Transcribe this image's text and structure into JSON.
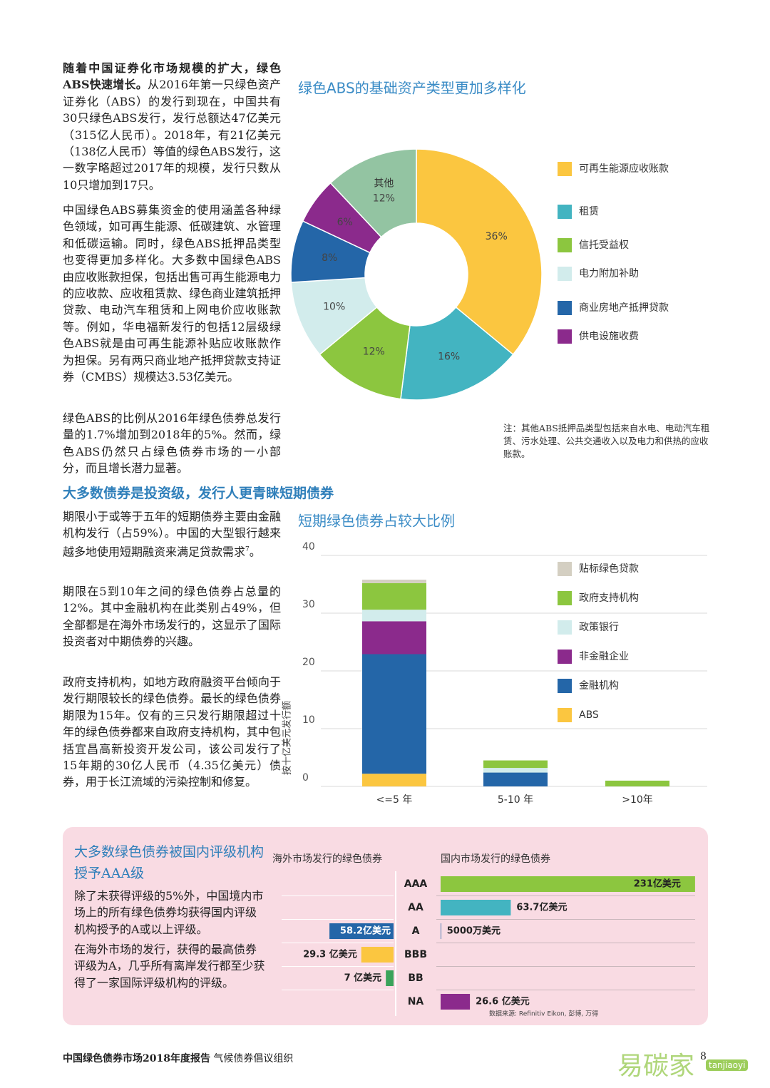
{
  "intro": {
    "lead": "随着中国证券化市场规模的扩大，绿色ABS快速增长。",
    "body": "从2016年第一只绿色资产证券化（ABS）的发行到现在，中国共有30只绿色ABS发行，发行总额达47亿美元（315亿人民币）。2018年，有21亿美元（138亿人民币）等值的绿色ABS发行，这一数字略超过2017年的规模，发行只数从10只增加到17只。",
    "p2": "中国绿色ABS募集资金的使用涵盖各种绿色领域，如可再生能源、低碳建筑、水管理和低碳运输。同时，绿色ABS抵押品类型也变得更加多样化。大多数中国绿色ABS由应收账款担保，包括出售可再生能源电力的应收款、应收租赁款、绿色商业建筑抵押贷款、电动汽车租赁和上网电价应收账款等。例如，华电福新发行的包括12层级绿色ABS就是由可再生能源补贴应收账款作为担保。另有两只商业地产抵押贷款支持证券（CMBS）规模达3.53亿美元。",
    "p3": "绿色ABS的比例从2016年绿色债券总发行量的1.7%增加到2018年的5%。然而，绿色ABS仍然只占绿色债券市场的一小部分，而且增长潜力显著。"
  },
  "section": {
    "heading": "大多数债券是投资级，发行人更青睐短期债券",
    "p1": "期限小于或等于五年的短期债券主要由金融机构发行（占59%）。中国的大型银行越来越多地使用短期融资来满足贷款需求",
    "p1_footnote": "7",
    "p1_end": "。",
    "p2": "期限在5到10年之间的绿色债券占总量的12%。其中金融机构在此类别占49%，但全部都是在海外市场发行的，这显示了国际投资者对中期债券的兴趣。",
    "p3": "政府支持机构，如地方政府融资平台倾向于发行期限较长的绿色债券。最长的绿色债券期限为15年。仅有的三只发行期限超过十年的绿色债券都来自政府支持机构，其中包括宜昌高新投资开发公司，该公司发行了15年期的30亿人民币（4.35亿美元）债券，用于长江流域的污染控制和修复。"
  },
  "rating_panel": {
    "title": "大多数绿色债券被国内评级机构授予AAA级",
    "p1": "除了未获得评级的5%外，中国境内市场上的所有绿色债券均获得国内评级机构授予的A或以上评级。",
    "p2": "在海外市场的发行，获得的最高债券评级为A，几乎所有离岸发行都至少获得了一家国际评级机构的评级。"
  },
  "chart_data": [
    {
      "type": "donut",
      "title": "绿色ABS的基础资产类型更加多样化",
      "categories": [
        "可再生能源应收账款",
        "租赁",
        "信托受益权",
        "电力附加补助",
        "商业房地产抵押贷款",
        "供电设施收费",
        "其他"
      ],
      "values": [
        36,
        16,
        12,
        10,
        8,
        6,
        12
      ],
      "value_labels": [
        "36%",
        "16%",
        "12%",
        "10%",
        "8%",
        "6%",
        "12%"
      ],
      "colors": [
        "#fbc640",
        "#43b4c1",
        "#8cc63f",
        "#d2ecec",
        "#2466a8",
        "#8b2a8c",
        "#93c4a2"
      ],
      "note": "注：其他ABS抵押品类型包括来自水电、电动汽车租赁、污水处理、公共交通收入以及电力和供热的应收账款。"
    },
    {
      "type": "stacked_bar",
      "title": "短期绿色债券占较大比例",
      "y_label": "按十亿美元发行额",
      "categories": [
        "<=5 年",
        "5-10 年",
        ">10年"
      ],
      "series": [
        {
          "name": "ABS",
          "color": "#fbc640",
          "values": [
            2.2,
            0,
            0
          ]
        },
        {
          "name": "金融机构",
          "color": "#2466a8",
          "values": [
            20.7,
            2.4,
            0
          ]
        },
        {
          "name": "非金融企业",
          "color": "#8b2a8c",
          "values": [
            5.7,
            0,
            0
          ]
        },
        {
          "name": "政策银行",
          "color": "#d2ecec",
          "values": [
            2,
            0.8,
            0
          ]
        },
        {
          "name": "政府支持机构",
          "color": "#8cc63f",
          "values": [
            4.6,
            1.3,
            1
          ]
        },
        {
          "name": "贴标绿色贷款",
          "color": "#d4cfc2",
          "values": [
            0.6,
            0,
            0
          ]
        }
      ],
      "ylim": [
        0,
        40
      ],
      "yticks": [
        0,
        10,
        20,
        30,
        40
      ],
      "grid": true
    },
    {
      "type": "butterfly",
      "categories": [
        "AAA",
        "AA",
        "A",
        "BBB",
        "BB",
        "NA"
      ],
      "series": [
        {
          "name": "海外市场发行的绿色债券",
          "values": [
            null,
            null,
            58.2,
            29.3,
            7,
            null
          ],
          "value_labels": [
            null,
            null,
            "58.2亿美元",
            "29.3 亿美元",
            "7 亿美元",
            null
          ],
          "colors": [
            null,
            null,
            "#2466a8",
            "#fbc640",
            "#3aa35a",
            null
          ]
        },
        {
          "name": "国内市场发行的绿色债券",
          "values": [
            231,
            63.7,
            0.5,
            null,
            null,
            26.6
          ],
          "value_labels": [
            "231亿美元",
            "63.7亿美元",
            "5000万美元",
            null,
            null,
            "26.6 亿美元"
          ],
          "colors": [
            "#8cc63f",
            "#43b4c1",
            "#2466a8",
            null,
            null,
            "#8b2a8c"
          ]
        }
      ],
      "source": "数据来源: Refinitiv Eikon, 彭博, 万得"
    }
  ],
  "footer": {
    "report": "中国绿色债券市场2018年度报告",
    "organization": "气候债券倡议组织",
    "page_number": "8",
    "watermark": "易碳家",
    "watermark_site": "tanjiaoyi"
  }
}
